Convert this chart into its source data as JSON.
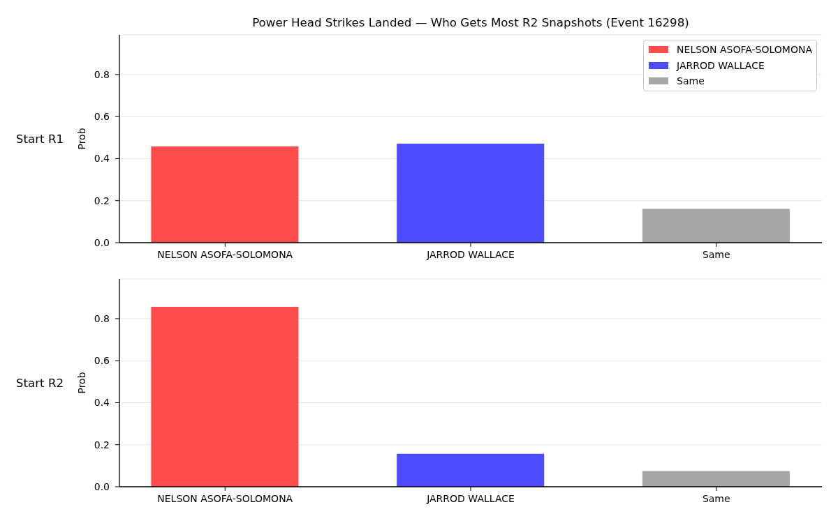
{
  "chart_data": [
    {
      "type": "bar",
      "title": "Power Head Strikes Landed — Who Gets Most R2 Snapshots (Event 16298)",
      "ylabel": "Prob",
      "annotations": [
        "Start R1"
      ],
      "categories": [
        "NELSON ASOFA-SOLOMONA",
        "JARROD WALLACE",
        "Same"
      ],
      "series": [
        {
          "name": "NELSON ASOFA-SOLOMONA",
          "color": "#ff4d4d",
          "values": [
            0.458,
            null,
            null
          ]
        },
        {
          "name": "JARROD WALLACE",
          "color": "#4d4dff",
          "values": [
            null,
            0.471,
            null
          ]
        },
        {
          "name": "Same",
          "color": "#a6a6a6",
          "values": [
            null,
            null,
            0.161
          ]
        }
      ],
      "ylim": [
        0,
        0.989
      ],
      "yticks": [
        {
          "value": 0,
          "label": "0.0"
        },
        0.2,
        0.4,
        0.6,
        0.8
      ],
      "grid": "y",
      "legend": "top right"
    },
    {
      "type": "bar",
      "ylabel": "Prob",
      "annotations": [
        "Start R2"
      ],
      "categories": [
        "NELSON ASOFA-SOLOMONA",
        "JARROD WALLACE",
        "Same"
      ],
      "values": [
        0.856,
        0.157,
        0.075
      ],
      "colors": [
        "#ff4d4d",
        "#4d4dff",
        "#a6a6a6"
      ],
      "ylim": [
        0,
        0.989
      ],
      "yticks": [
        {
          "value": 0,
          "label": "0.0"
        },
        0.2,
        0.4,
        0.6,
        0.8
      ],
      "grid": "y"
    }
  ]
}
